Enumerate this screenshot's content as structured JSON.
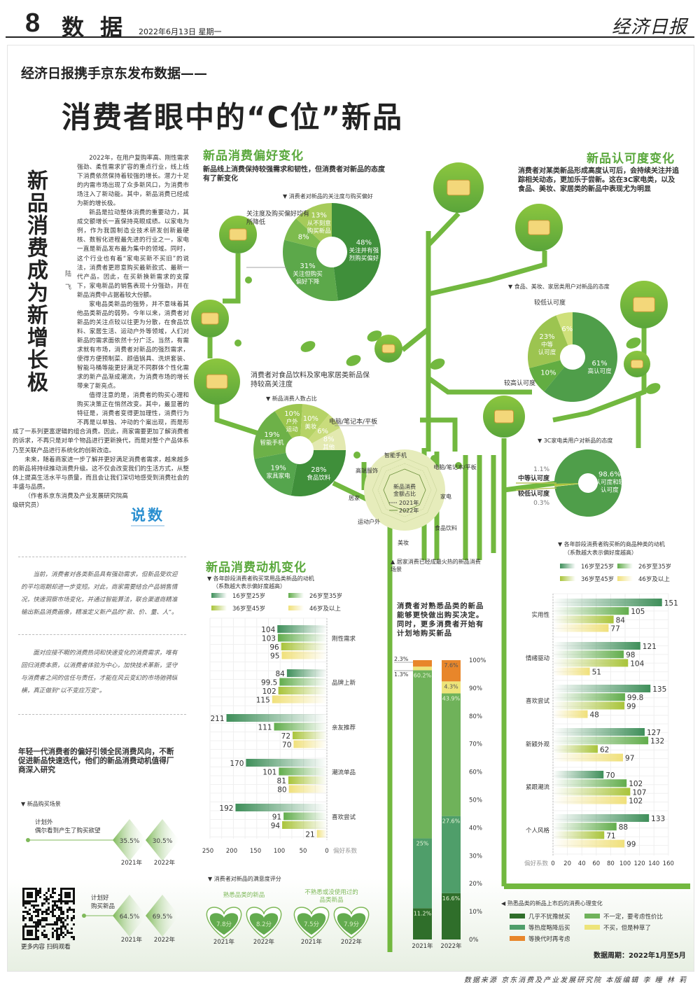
{
  "header": {
    "page_no": "8",
    "section": "数 据",
    "date": "2022年6月13日  星期一",
    "logo": "经济日报"
  },
  "kicker": "经济日报携手京东发布数据——",
  "title": "消费者眼中的“C位”新品",
  "article": {
    "headline": "新品消费成为新增长极",
    "byline": "陆飞",
    "paragraphs": [
      "2022年，在用户复购率高、刚性需求强劲、柔性需求扩容的重点行业，线上线下消费依然保持着较强的增长。潜力十足的内需市场出现了众多新风口，为消费市场注入了新动能。其中，新品消费已经成为新的增长极。",
      "新品是拉动整体消费的重要动力，其成交额增长一直保持亮眼成绩。以家电为例，作为我国制造业技术研发创新最硬核、数智化进程最先进的行业之一，家电一直是新品发布最为集中的领域。同时，这个行业也有着“家电买新不买旧”的说法，消费者更愿意购买最新款式、最新一代产品。因此，在买新换新需求的支撑下，家电新品的销售表现十分强劲，并在新品消费中占据着较大份额。",
      "家电品类新品的强势，并不意味着其他品类新品的弱势。今年以来，消费者对新品的关注点较以往更为分散，在食品饮料、家居生活、运动户外等领域，人们对新品的需求面依然十分广泛。当然，有需求就有市场，消费者对新品的强烈需求，使得方便预制菜、颜值锅具、洗烘套装、智能马桶等能更好满足不同群体个性化需求的新产品渐成潮流，为消费市场的增长带来了新亮点。",
      "值得注意的是，消费者的购买心理和购买决策正在悄然改变。其中，最显著的特征是，消费者变得更加理性，消费行为不再是以单独、冲动的个案出现，而是形成了一系列更富逻辑的组合消费。因此，商家需要更加了解消费者的诉求，不再只是对单个物品进行更新换代，而是对整个产品体系乃至关联产品进行系统化的创新改造。",
      "未来，随着商家进一步了解并更好满足消费者需求，越来越多的新品将持续推动消费升级。这不仅会改变我们的生活方式，从整体上提高生活水平与质量，而且会让我们深切地感受到消费社会的丰盛与品质。",
      "（作者系京东消费及产业发展研究院高级研究员）"
    ],
    "badge": "说数"
  },
  "notes": [
    "当前，消费者对各类新品具有强劲需求，但新品受欢迎的平均周期却进一步变短。对此，商家需要结合产品销售情况，快速洞察市场变化，并通过智能算法，联合渠道商精准输出新品消费画像，精准定义新产品的“款、价、量、人”。",
    "面对应接不暇的消费热词和快速变化的消费需求，唯有回归消费本质，以消费者体验为中心，加快技术革新，坚守与消费者之间的信任与责任，才能在风云变幻的市场驰骋纵横，真正做到“以不变应万变”。"
  ],
  "youth_note": "年轻一代消费者的偏好引领全民消费风向，不断促进新品快速迭代，他们的新品消费动机值得厂商深入研究",
  "sections": {
    "preference": {
      "title": "新品消费偏好变化",
      "desc": "新品线上消费保持较强需求和韧性，但消费者对新品的态度有了新变化",
      "callout": "关注度及购买偏好均有所降低"
    },
    "category": {
      "desc": "消费者对食品饮料及家电家居类新品保持较高关注度",
      "arrow_label": "电脑/笔记本/平板"
    },
    "recognition": {
      "title": "新品认可度变化",
      "desc": "消费者对某类新品形成高度认可后，会持续关注并追踪相关动态，更加乐于尝新。这在3C家电类，以及食品、美妆、家居类的新品中表现尤为明显"
    },
    "motivation": {
      "title": "新品消费动机变化"
    },
    "radar": {
      "center_label": "新品消费金额占比",
      "legend_2021": "2021年",
      "legend_2022": "2022年",
      "axes": [
        "智能手机",
        "电脑/笔记本/平板",
        "家电",
        "食品饮料",
        "美妆",
        "运动户外",
        "居家",
        "高端服饰"
      ],
      "caption": "▲ 居家消费已经成最火热的新品消费场景"
    },
    "stacked_desc": "消费者对熟悉品类的新品能够更快做出购买决定。同时，更多消费者开始有计划地购买新品",
    "period": "数据周期：2022年1月至5月",
    "qr_caption": "更多内容 扫码观看"
  },
  "footer": "数据来源  京东消费及产业发展研究院  本版编辑  李 瞳  林 莉",
  "colors": {
    "tree": "#72b83f",
    "title_green": "#5aa83c",
    "age1": "#3f8f5a",
    "age2": "#62ad4c",
    "age3": "#a9c43a",
    "age4": "#f0e07a",
    "orange": "#e8862a"
  },
  "chart_data": [
    {
      "id": "attention",
      "type": "pie",
      "title": "▼ 消费者对新品的关注度与购买偏好",
      "slices": [
        {
          "value": 48,
          "label": "48%",
          "lines": [
            "关注并有强",
            "烈购买偏好"
          ],
          "color": "#3f8f3a"
        },
        {
          "value": 31,
          "label": "31%",
          "lines": [
            "关注但购买",
            "偏好下降"
          ],
          "color": "#5ca84a"
        },
        {
          "value": 8,
          "label": "8%",
          "lines": [],
          "color": "#7dbb4e"
        },
        {
          "value": 13,
          "label": "13%",
          "lines": [
            "从不刻意",
            "购买新品"
          ],
          "color": "#a6cb5a"
        }
      ]
    },
    {
      "id": "share",
      "type": "pie",
      "title": "▼ 新品消费人数占比",
      "slices": [
        {
          "value": 28,
          "label": "28%",
          "lines": [
            "食品饮料"
          ],
          "color": "#3f8f3a"
        },
        {
          "value": 19,
          "label": "19%",
          "lines": [
            "家具家电"
          ],
          "color": "#55a54d"
        },
        {
          "value": 19,
          "label": "19%",
          "lines": [
            "智能手机"
          ],
          "color": "#6db148"
        },
        {
          "value": 10,
          "label": "10%",
          "lines": [
            "户外",
            "运动"
          ],
          "color": "#9cc64f"
        },
        {
          "value": 10,
          "label": "10%",
          "lines": [
            "美妆"
          ],
          "color": "#b6d366"
        },
        {
          "value": 6,
          "label": "6%",
          "lines": [],
          "color": "#c9dc7c"
        },
        {
          "value": 8,
          "label": "8%",
          "lines": [
            "其他"
          ],
          "color": "#e3e9b0"
        }
      ]
    },
    {
      "id": "food-attitude",
      "type": "pie",
      "title": "▼ 食品、美妆、家居类用户对新品的态度",
      "slices": [
        {
          "value": 61,
          "label": "61%",
          "lines": [
            "高认可度"
          ],
          "color": "#4f9e4a"
        },
        {
          "value": 10,
          "label": "10%",
          "lines": [],
          "color": "#62ad42"
        },
        {
          "value": 23,
          "label": "23%",
          "lines": [
            "中等",
            "认可度"
          ],
          "color": "#9cc450"
        },
        {
          "value": 6,
          "label": "6%",
          "lines": [],
          "color": "#cfe07a"
        }
      ],
      "callouts": [
        "较低认可度",
        "较高认可度"
      ]
    },
    {
      "id": "3c-attitude",
      "type": "pie",
      "title": "▼ 3C家电类用户对新品的态度",
      "slices": [
        {
          "value": 98.6,
          "label": "98.6%",
          "lines": [
            "高认可度和较高",
            "认可度"
          ],
          "color": "#4f9e4a"
        },
        {
          "value": 0.3,
          "label": "0.3%",
          "lines": [
            "较低认可度"
          ],
          "color": "#e9e07a"
        },
        {
          "value": 1.1,
          "label": "1.1%",
          "lines": [
            "中等认可度"
          ],
          "color": "#a9c43a"
        }
      ]
    },
    {
      "id": "common-motive",
      "type": "bar",
      "orientation": "horizontal-left",
      "title": "▼ 各年龄段消费者购买常用品类新品的动机",
      "subtitle": "（系数越大表示偏好度越高）",
      "series_names": [
        "16岁至25岁",
        "26岁至35岁",
        "36岁至45岁",
        "46岁及以上"
      ],
      "categories": [
        "刚性需求",
        "品牌上新",
        "亲友推荐",
        "潮流单品",
        "喜欢尝试"
      ],
      "values": [
        [
          104,
          103,
          96,
          95
        ],
        [
          84,
          99.5,
          102,
          115
        ],
        [
          211,
          111,
          72,
          70
        ],
        [
          170,
          101,
          81,
          80
        ],
        [
          192,
          91,
          94,
          21
        ]
      ],
      "value_labels": [
        [
          "104",
          "103",
          "96",
          "95"
        ],
        [
          "84",
          "99.5",
          "102",
          "115"
        ],
        [
          "211",
          "111",
          "72",
          "70"
        ],
        [
          "170",
          "101",
          "81",
          "80"
        ],
        [
          "192",
          "91",
          "94",
          "21"
        ]
      ],
      "xticks": [
        "250",
        "200",
        "150",
        "100",
        "50",
        "0"
      ],
      "xlabel": "偏好系数",
      "xlim": [
        0,
        250
      ]
    },
    {
      "id": "kind-motive",
      "type": "bar",
      "orientation": "horizontal",
      "title": "▼ 各年龄段消费者购买新的商品种类的动机",
      "subtitle": "（系数越大表示偏好度越高）",
      "series_names": [
        "16岁至25岁",
        "26岁至35岁",
        "36岁至45岁",
        "46岁及以上"
      ],
      "categories": [
        "实用性",
        "情绪驱动",
        "喜欢尝试",
        "新颖外观",
        "紧跟潮流",
        "个人风格"
      ],
      "values": [
        [
          151,
          105,
          84,
          77
        ],
        [
          121,
          98,
          104,
          51
        ],
        [
          135,
          99.8,
          99,
          48
        ],
        [
          127,
          132,
          62,
          97
        ],
        [
          70,
          102,
          107,
          102
        ],
        [
          133,
          88,
          71,
          99
        ]
      ],
      "value_labels": [
        [
          "151",
          "105",
          "84",
          "77"
        ],
        [
          "121",
          "98",
          "104",
          "51"
        ],
        [
          "135",
          "99.8",
          "99",
          "48"
        ],
        [
          "127",
          "132",
          "62",
          "97"
        ],
        [
          "70",
          "102",
          "107",
          "102"
        ],
        [
          "133",
          "88",
          "71",
          "99"
        ]
      ],
      "xticks": [
        "0",
        "20",
        "40",
        "60",
        "80",
        "100",
        "120",
        "140",
        "160"
      ],
      "xlabel": "偏好系数",
      "xlim": [
        0,
        160
      ]
    },
    {
      "id": "psychology",
      "type": "bar",
      "stacked": true,
      "title": "◀ 熟悉品类的新品上市后的消费心理变化",
      "categories": [
        "2021年",
        "2022年"
      ],
      "series": [
        {
          "name": "几乎不犹豫就买",
          "values": [
            11.2,
            16.6
          ],
          "labels": [
            "11.2%",
            "16.6%"
          ],
          "color": "#2f6e2a"
        },
        {
          "name": "等热度略降后买",
          "values": [
            25,
            27.6
          ],
          "labels": [
            "25%",
            "27.6%"
          ],
          "color": "#4f9e6a"
        },
        {
          "name": "不一定，要考虑性价比",
          "values": [
            60.2,
            43.9
          ],
          "labels": [
            "60.2%",
            "43.9%"
          ],
          "color": "#6fb25a"
        },
        {
          "name": "不买，但是种草了",
          "values": [
            1.3,
            4.3
          ],
          "labels": [
            "1.3%",
            "4.3%"
          ],
          "color": "#ede479"
        },
        {
          "name": "等换代时再考虑",
          "values": [
            2.3,
            7.6
          ],
          "labels": [
            "2.3%",
            "7.6%"
          ],
          "color": "#e8862a"
        }
      ],
      "yticks": [
        "0%",
        "10%",
        "20%",
        "30%",
        "40%",
        "50%",
        "60%",
        "70%",
        "80%",
        "90%",
        "100%"
      ],
      "ylim": [
        0,
        100
      ]
    },
    {
      "id": "scenario",
      "type": "table",
      "title": "▼ 新品购买场景",
      "rows": [
        {
          "label": [
            "计划外",
            "偶尔看到产生了购买欲望"
          ],
          "values": [
            "35.5%",
            "30.5%"
          ]
        },
        {
          "label": [
            "计划好",
            "购买新品"
          ],
          "values": [
            "64.5%",
            "69.5%"
          ]
        }
      ],
      "years": [
        "2021年",
        "2022年"
      ]
    },
    {
      "id": "satisfaction",
      "type": "table",
      "title": "▼ 消费者对新品的满意度评分",
      "groups": [
        {
          "label": [
            "熟悉品类的新品"
          ],
          "values": [
            "7.8分",
            "8.2分"
          ]
        },
        {
          "label": [
            "不熟悉或没使用过的",
            "品类新品"
          ],
          "values": [
            "7.5分",
            "7.9分"
          ]
        }
      ],
      "years": [
        "2021年",
        "2022年"
      ]
    }
  ]
}
